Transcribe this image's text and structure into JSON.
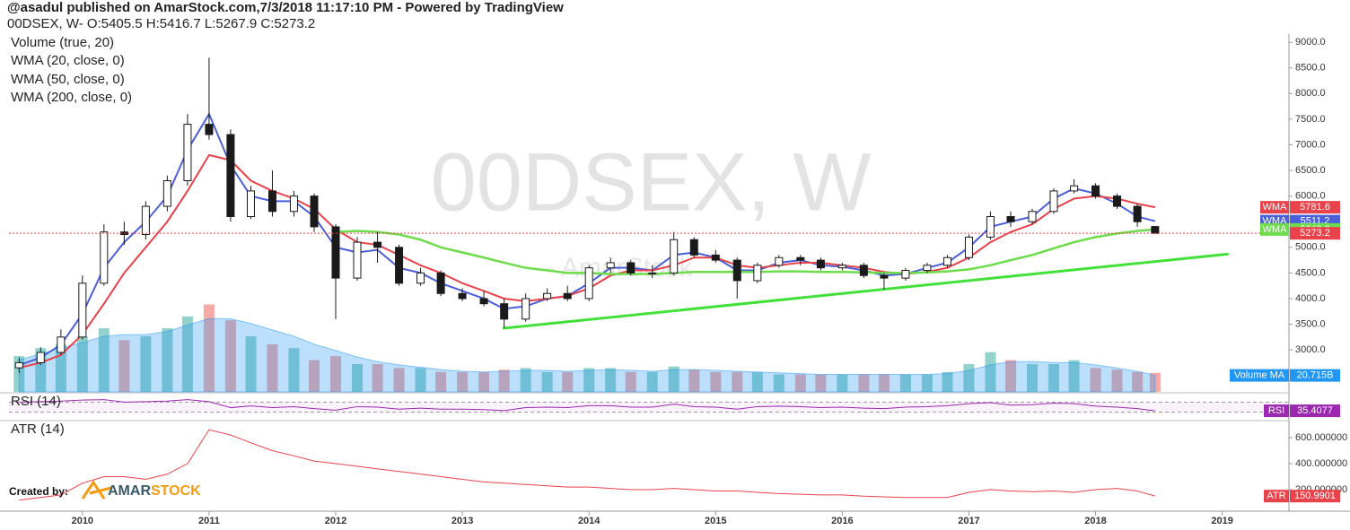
{
  "header": {
    "line1": "@asadul published on AmarStock.com,7/3/2018 11:17:10 PM - Powered by TradingView",
    "line2": "00DSEX, W- O:5405.5 H:5416.7 L:5267.9 C:5273.2"
  },
  "chart_data": {
    "type": "candlestick",
    "watermark": "00DSEX, W",
    "watermark_sub": "- AmarStock",
    "xlim": [
      2009.42,
      2019.52
    ],
    "xticks": [
      2010,
      2011,
      2012,
      2013,
      2014,
      2015,
      2016,
      2017,
      2018,
      2019
    ],
    "ylim": [
      2180,
      9160
    ],
    "yticks": [
      {
        "value": 3000,
        "label": "3000.0"
      },
      {
        "value": 3500,
        "label": "3500.0"
      },
      {
        "value": 4000,
        "label": "4000.0"
      },
      {
        "value": 4500,
        "label": "4500.0"
      },
      {
        "value": 5000,
        "label": "5000.0"
      },
      {
        "value": 5500,
        "label": "5500.0"
      },
      {
        "value": 6000,
        "label": "6000.0"
      },
      {
        "value": 6500,
        "label": "6500.0"
      },
      {
        "value": 7000,
        "label": "7000.0"
      },
      {
        "value": 7500,
        "label": "7500.0"
      },
      {
        "value": 8000,
        "label": "8000.0"
      },
      {
        "value": 8500,
        "label": "8500.0"
      },
      {
        "value": 9000,
        "label": "9000.0"
      }
    ],
    "x": [
      2009.5,
      2009.67,
      2009.83,
      2010,
      2010.17,
      2010.33,
      2010.5,
      2010.67,
      2010.83,
      2011,
      2011.17,
      2011.33,
      2011.5,
      2011.67,
      2011.83,
      2012,
      2012.17,
      2012.33,
      2012.5,
      2012.67,
      2012.83,
      2013,
      2013.17,
      2013.33,
      2013.5,
      2013.67,
      2013.83,
      2014,
      2014.17,
      2014.33,
      2014.5,
      2014.67,
      2014.83,
      2015,
      2015.17,
      2015.33,
      2015.5,
      2015.67,
      2015.83,
      2016,
      2016.17,
      2016.33,
      2016.5,
      2016.67,
      2016.83,
      2017,
      2017.17,
      2017.33,
      2017.5,
      2017.67,
      2017.83,
      2018,
      2018.17,
      2018.33,
      2018.47
    ],
    "open": [
      2650,
      2750,
      2950,
      3250,
      4300,
      5300,
      5250,
      5800,
      6300,
      7400,
      7200,
      5600,
      6100,
      5700,
      6000,
      5400,
      4400,
      5100,
      5000,
      4300,
      4500,
      4100,
      4000,
      3900,
      3600,
      4000,
      4100,
      4000,
      4600,
      4700,
      4500,
      4500,
      5150,
      4850,
      4750,
      4350,
      4650,
      4800,
      4750,
      4600,
      4650,
      4450,
      4400,
      4550,
      4650,
      4800,
      5200,
      5600,
      5500,
      5700,
      6100,
      6200,
      6000,
      5800,
      5405.5
    ],
    "high": [
      2850,
      3050,
      3400,
      4450,
      5450,
      5500,
      5900,
      6400,
      7600,
      8700,
      7300,
      6200,
      6500,
      6100,
      6050,
      5450,
      5200,
      5300,
      5050,
      4600,
      4550,
      4200,
      4150,
      4000,
      4100,
      4200,
      4250,
      4650,
      4800,
      4750,
      4650,
      5300,
      5200,
      4950,
      4800,
      4700,
      4850,
      4850,
      4800,
      4700,
      4700,
      4500,
      4600,
      4700,
      4850,
      5250,
      5700,
      5700,
      5750,
      6150,
      6330,
      6250,
      6050,
      5850,
      5416.7
    ],
    "low": [
      2550,
      2700,
      2900,
      3200,
      4250,
      5050,
      5150,
      5700,
      6200,
      7100,
      5500,
      5550,
      5600,
      5600,
      5300,
      3600,
      4350,
      4700,
      4250,
      4250,
      4050,
      3950,
      3850,
      3420,
      3550,
      3950,
      3950,
      3950,
      4500,
      4450,
      4400,
      4450,
      4800,
      4700,
      4000,
      4300,
      4600,
      4650,
      4550,
      4550,
      4400,
      4180,
      4350,
      4500,
      4600,
      4750,
      5150,
      5400,
      5450,
      5650,
      6050,
      5950,
      5750,
      5400,
      5267.9
    ],
    "close": [
      2750,
      2950,
      3250,
      4300,
      5300,
      5250,
      5800,
      6300,
      7400,
      7200,
      5600,
      6100,
      5700,
      6000,
      5400,
      4400,
      5100,
      5000,
      4300,
      4500,
      4100,
      4000,
      3900,
      3600,
      4000,
      4100,
      4000,
      4600,
      4700,
      4500,
      4500,
      5150,
      4850,
      4750,
      4350,
      4650,
      4800,
      4750,
      4600,
      4650,
      4450,
      4400,
      4550,
      4650,
      4800,
      5200,
      5600,
      5500,
      5700,
      6100,
      6200,
      6000,
      5800,
      5500,
      5273.2
    ],
    "candle_colors": {
      "up": "#ffffff",
      "down": "#1a1a1a",
      "wick": "#1a1a1a"
    },
    "close_badge_color": "#e8424a",
    "series": [
      {
        "name": "WMA (20, close, 0)",
        "badge": "WMA",
        "color": "#4a5fd8",
        "values": [
          2700,
          2850,
          3100,
          3700,
          4600,
          5100,
          5500,
          6000,
          6900,
          7600,
          6600,
          6000,
          5900,
          5900,
          5600,
          5000,
          4900,
          4950,
          4600,
          4500,
          4300,
          4150,
          4000,
          3800,
          3850,
          4000,
          4050,
          4300,
          4600,
          4600,
          4550,
          4850,
          4900,
          4800,
          4550,
          4550,
          4700,
          4750,
          4650,
          4620,
          4550,
          4450,
          4480,
          4600,
          4700,
          5000,
          5400,
          5500,
          5600,
          5950,
          6150,
          6050,
          5850,
          5600,
          5511.2
        ]
      },
      {
        "name": "WMA (50, close, 0)",
        "badge": "WMA",
        "color": "#e8424a",
        "values": [
          2650,
          2750,
          2900,
          3300,
          3900,
          4500,
          5000,
          5500,
          6100,
          6800,
          6700,
          6300,
          6100,
          5950,
          5750,
          5350,
          5100,
          5050,
          4850,
          4650,
          4500,
          4300,
          4150,
          4000,
          3950,
          4000,
          4050,
          4200,
          4450,
          4550,
          4550,
          4650,
          4800,
          4800,
          4650,
          4600,
          4650,
          4700,
          4700,
          4650,
          4600,
          4520,
          4480,
          4520,
          4600,
          4800,
          5100,
          5300,
          5450,
          5750,
          5950,
          6000,
          5950,
          5850,
          5781.6
        ]
      },
      {
        "name": "WMA (200, close, 0)",
        "badge": "WMA",
        "color": "#6ddc4a",
        "values": [
          null,
          null,
          null,
          null,
          null,
          null,
          null,
          null,
          null,
          null,
          null,
          null,
          null,
          null,
          null,
          5300,
          5320,
          5300,
          5250,
          5150,
          5000,
          4900,
          4800,
          4700,
          4600,
          4550,
          4500,
          4500,
          4480,
          4480,
          4480,
          4500,
          4520,
          4520,
          4520,
          4520,
          4530,
          4530,
          4520,
          4520,
          4510,
          4500,
          4500,
          4510,
          4530,
          4570,
          4650,
          4750,
          4850,
          4980,
          5100,
          5200,
          5270,
          5320,
          5348.8
        ]
      }
    ],
    "trendline": {
      "color": "#44e03a",
      "x": [
        2013.32,
        2019.05
      ],
      "values": [
        3420,
        4870
      ]
    },
    "volume": {
      "name": "Volume (true, 20)",
      "ylim": [
        0,
        450
      ],
      "colors": {
        "up": "#26a69a",
        "down": "#ef5350"
      },
      "values": [
        45,
        55,
        60,
        70,
        80,
        65,
        70,
        80,
        95,
        110,
        90,
        70,
        60,
        55,
        40,
        45,
        35,
        35,
        30,
        30,
        25,
        25,
        25,
        28,
        30,
        25,
        25,
        30,
        30,
        25,
        25,
        32,
        28,
        25,
        25,
        25,
        22,
        22,
        22,
        22,
        22,
        22,
        22,
        22,
        25,
        35,
        50,
        40,
        35,
        35,
        40,
        30,
        28,
        25,
        24
      ],
      "ma": {
        "badge": "Volume MA",
        "color": "#2196f3",
        "last_value_label": "20.715B",
        "values": [
          40,
          48,
          55,
          62,
          70,
          72,
          72,
          76,
          84,
          92,
          92,
          86,
          78,
          70,
          60,
          52,
          44,
          38,
          34,
          31,
          28,
          26,
          25,
          26,
          27,
          27,
          26,
          27,
          28,
          27,
          26,
          28,
          28,
          27,
          26,
          25,
          24,
          23,
          22,
          22,
          22,
          22,
          22,
          22,
          23,
          27,
          34,
          38,
          38,
          37,
          37,
          34,
          30,
          26,
          20.715
        ]
      }
    },
    "rsi": {
      "name": "RSI (14)",
      "badge": "RSI",
      "color": "#9c27b0",
      "ylim": [
        0,
        100
      ],
      "bands": [
        30,
        70
      ],
      "values": [
        70,
        72,
        74,
        78,
        80,
        70,
        72,
        74,
        80,
        72,
        48,
        55,
        48,
        52,
        44,
        38,
        52,
        50,
        42,
        46,
        42,
        42,
        40,
        36,
        48,
        50,
        48,
        56,
        56,
        50,
        50,
        62,
        52,
        50,
        42,
        52,
        54,
        52,
        48,
        50,
        46,
        44,
        50,
        52,
        56,
        64,
        68,
        58,
        60,
        66,
        64,
        54,
        50,
        44,
        35.4077
      ]
    },
    "atr": {
      "name": "ATR (14)",
      "badge": "ATR",
      "color": "#e8424a",
      "ylim": [
        35,
        724
      ],
      "yticks": [
        {
          "value": 200,
          "label": "200.000000"
        },
        {
          "value": 400,
          "label": "400.000000"
        },
        {
          "value": 600,
          "label": "600.000000"
        }
      ],
      "values": [
        120,
        140,
        160,
        250,
        300,
        300,
        280,
        320,
        400,
        660,
        620,
        560,
        500,
        460,
        420,
        400,
        380,
        360,
        340,
        320,
        300,
        280,
        260,
        250,
        240,
        230,
        220,
        220,
        210,
        200,
        200,
        210,
        200,
        190,
        190,
        180,
        170,
        165,
        160,
        160,
        150,
        145,
        140,
        140,
        140,
        180,
        200,
        190,
        185,
        190,
        180,
        200,
        210,
        190,
        150.9901
      ]
    },
    "created_by": "Created by:",
    "logo": [
      "AMAR",
      "STOCK"
    ]
  }
}
